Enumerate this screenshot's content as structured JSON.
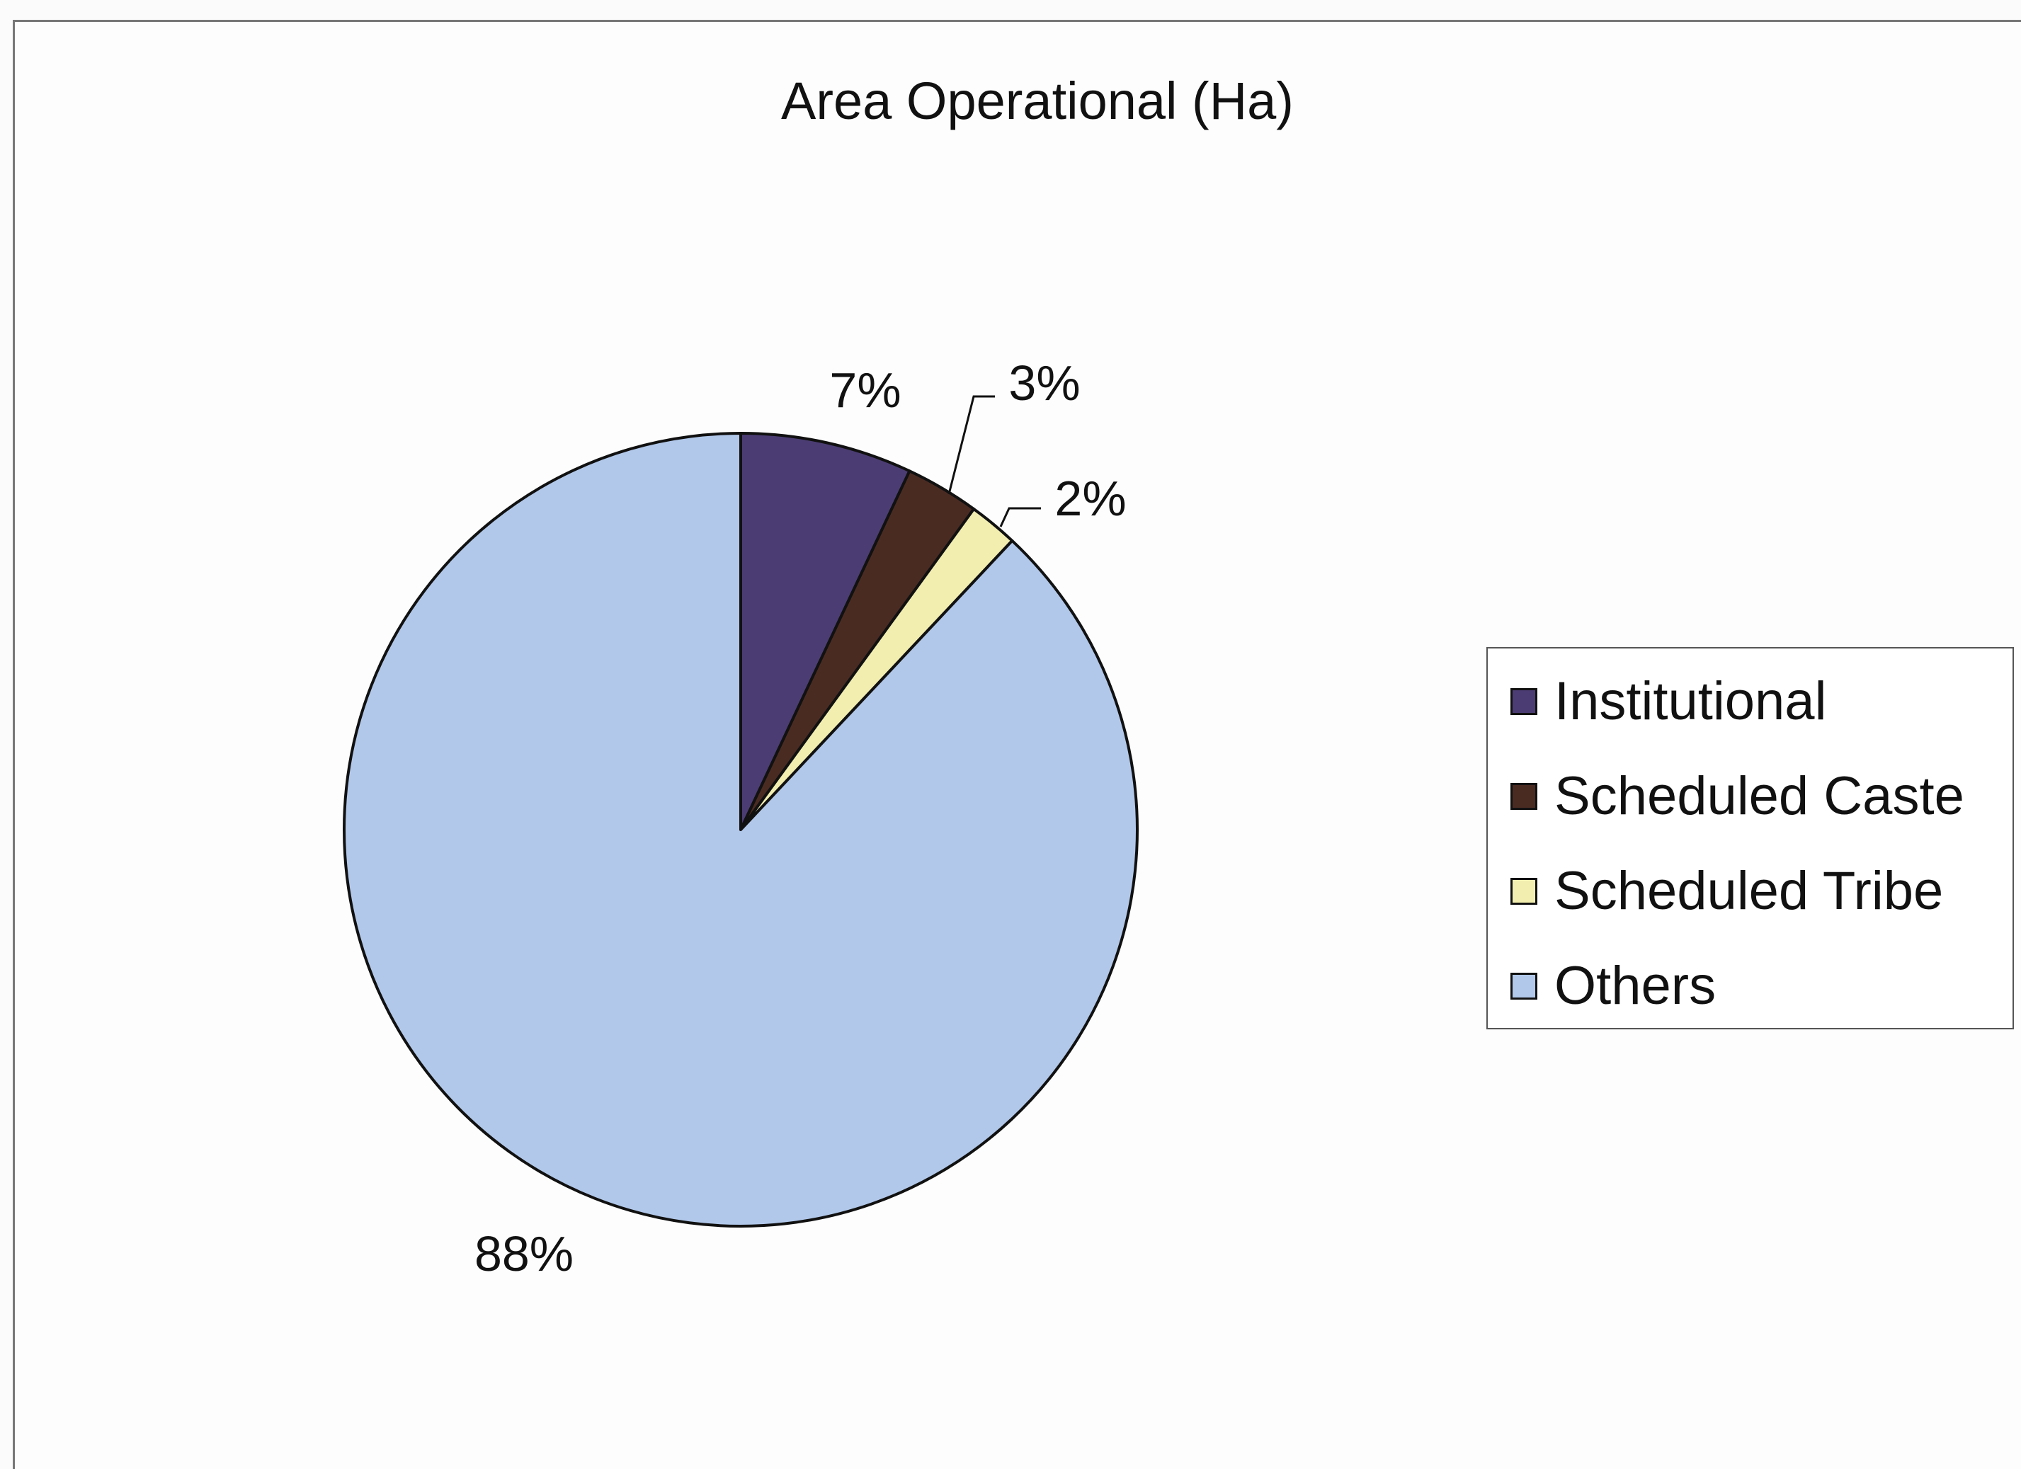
{
  "chart_data": {
    "type": "pie",
    "title": "Area Operational (Ha)",
    "slices": [
      {
        "label": "Institutional",
        "value": 7,
        "display": "7%",
        "color": "#4b3d73"
      },
      {
        "label": "Scheduled Caste",
        "value": 3,
        "display": "3%",
        "color": "#4a2b22"
      },
      {
        "label": "Scheduled Tribe",
        "value": 2,
        "display": "2%",
        "color": "#f2eeb0"
      },
      {
        "label": "Others",
        "value": 88,
        "display": "88%",
        "color": "#b1c8ea"
      }
    ],
    "legend_position": "right"
  }
}
